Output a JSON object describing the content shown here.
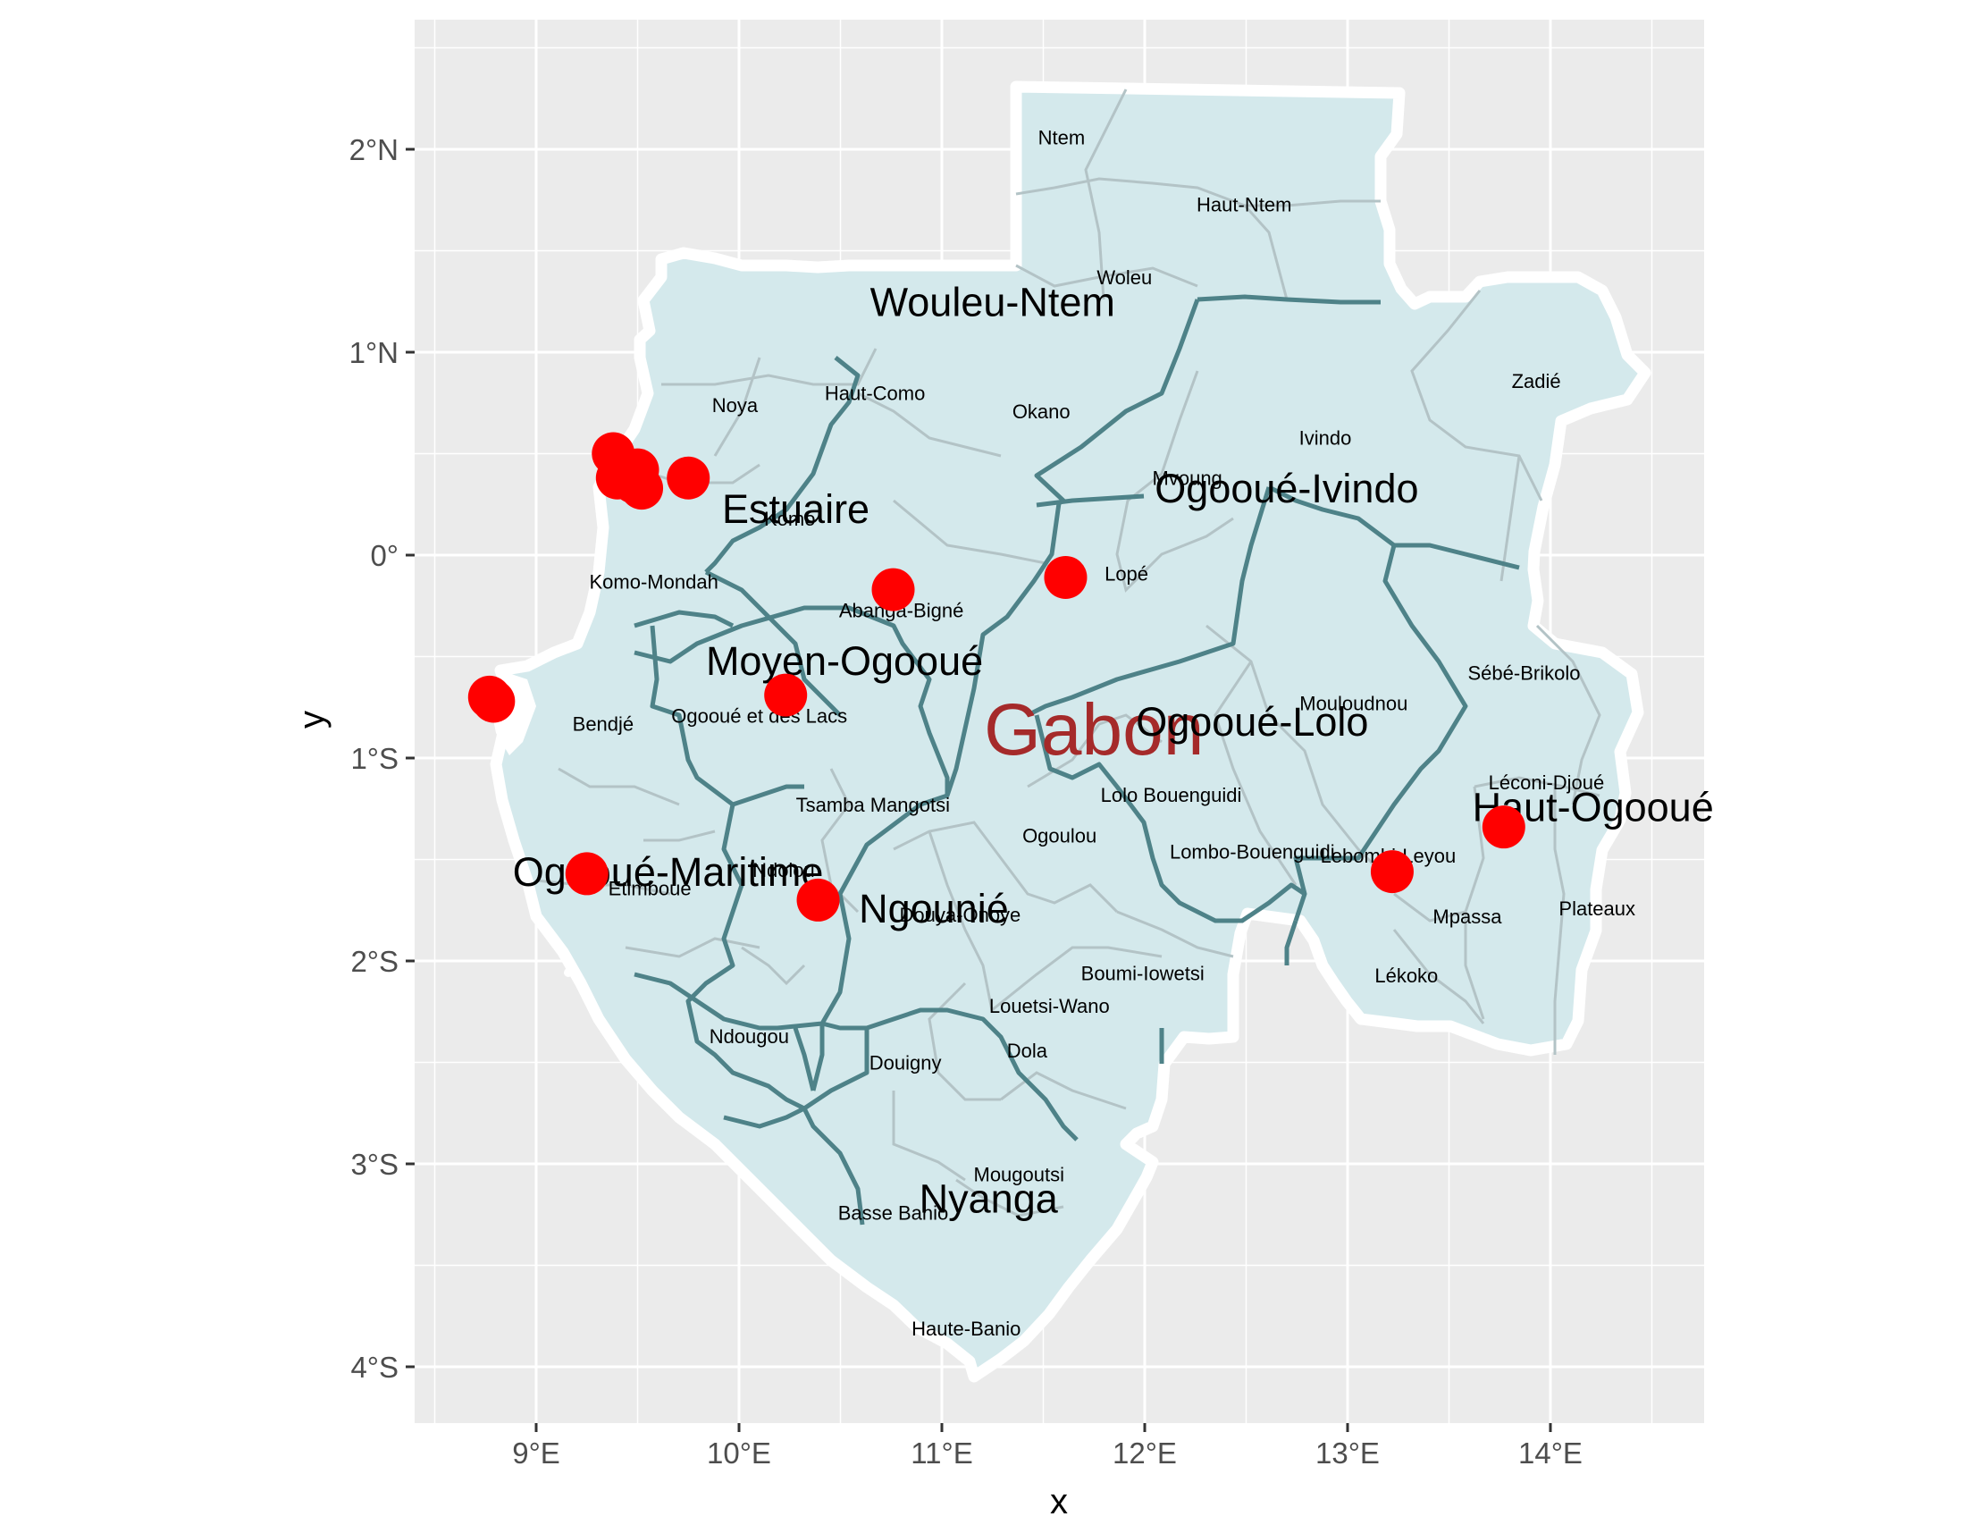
{
  "chart_data": {
    "type": "map",
    "xlabel": "x",
    "ylabel": "y",
    "xlim": [
      8.4,
      14.8
    ],
    "ylim": [
      -4.3,
      2.6
    ],
    "grid": true,
    "x_ticks": [
      {
        "value": 9,
        "label": "9°E"
      },
      {
        "value": 10,
        "label": "10°E"
      },
      {
        "value": 11,
        "label": "11°E"
      },
      {
        "value": 12,
        "label": "12°E"
      },
      {
        "value": 13,
        "label": "13°E"
      },
      {
        "value": 14,
        "label": "14°E"
      }
    ],
    "y_ticks": [
      {
        "value": 2,
        "label": "2°N"
      },
      {
        "value": 1,
        "label": "1°N"
      },
      {
        "value": 0,
        "label": "0°"
      },
      {
        "value": -1,
        "label": "1°S"
      },
      {
        "value": -2,
        "label": "2°S"
      },
      {
        "value": -3,
        "label": "3°S"
      },
      {
        "value": -4,
        "label": "4°S"
      }
    ],
    "country": {
      "name": "Gabon",
      "lon": 11.75,
      "lat": -0.85,
      "color": "#a52a2a"
    },
    "provinces": [
      {
        "name": "Wouleu-Ntem",
        "lon": 11.25,
        "lat": 1.25
      },
      {
        "name": "Estuaire",
        "lon": 10.28,
        "lat": 0.23
      },
      {
        "name": "Ogooué-Ivindo",
        "lon": 12.7,
        "lat": 0.33
      },
      {
        "name": "Moyen-Ogooué",
        "lon": 10.52,
        "lat": -0.52
      },
      {
        "name": "Ogooué-Lolo",
        "lon": 12.53,
        "lat": -0.82
      },
      {
        "name": "Haut-Ogooué",
        "lon": 14.21,
        "lat": -1.24
      },
      {
        "name": "Ogooué-Maritime",
        "lon": 9.65,
        "lat": -1.56
      },
      {
        "name": "Ngounié",
        "lon": 10.96,
        "lat": -1.74
      },
      {
        "name": "Nyanga",
        "lon": 11.23,
        "lat": -3.17
      }
    ],
    "departments": [
      {
        "name": "Ntem",
        "lon": 11.59,
        "lat": 2.06
      },
      {
        "name": "Haut-Ntem",
        "lon": 12.49,
        "lat": 1.73
      },
      {
        "name": "Woleu",
        "lon": 11.9,
        "lat": 1.37
      },
      {
        "name": "Okano",
        "lon": 11.49,
        "lat": 0.71
      },
      {
        "name": "Haut-Como",
        "lon": 10.67,
        "lat": 0.8
      },
      {
        "name": "Noya",
        "lon": 9.98,
        "lat": 0.74
      },
      {
        "name": "Zadié",
        "lon": 13.93,
        "lat": 0.86
      },
      {
        "name": "Ivindo",
        "lon": 12.89,
        "lat": 0.58
      },
      {
        "name": "Mvoung",
        "lon": 12.21,
        "lat": 0.38
      },
      {
        "name": "Komo",
        "lon": 10.25,
        "lat": 0.18
      },
      {
        "name": "Komo-Mondah",
        "lon": 9.58,
        "lat": -0.13
      },
      {
        "name": "Lopé",
        "lon": 11.91,
        "lat": -0.09
      },
      {
        "name": "Abanga-Bigné",
        "lon": 10.8,
        "lat": -0.27
      },
      {
        "name": "Sébé-Brikolo",
        "lon": 13.87,
        "lat": -0.58
      },
      {
        "name": "Mouloudnou",
        "lon": 13.03,
        "lat": -0.73
      },
      {
        "name": "Bendjé",
        "lon": 9.33,
        "lat": -0.83
      },
      {
        "name": "Ogooué et des Lacs",
        "lon": 10.1,
        "lat": -0.79
      },
      {
        "name": "Léconi-Djoué",
        "lon": 13.98,
        "lat": -1.12
      },
      {
        "name": "Lolo Bouenguidi",
        "lon": 12.13,
        "lat": -1.18
      },
      {
        "name": "Tsamba Mangotsi",
        "lon": 10.66,
        "lat": -1.23
      },
      {
        "name": "Ogoulou",
        "lon": 11.58,
        "lat": -1.38
      },
      {
        "name": "Lombo-Bouenguidi",
        "lon": 12.53,
        "lat": -1.46
      },
      {
        "name": "Lebombi-Leyou",
        "lon": 13.2,
        "lat": -1.48
      },
      {
        "name": "Ndolou",
        "lon": 10.22,
        "lat": -1.55
      },
      {
        "name": "Etimboué",
        "lon": 9.56,
        "lat": -1.64
      },
      {
        "name": "Mpassa",
        "lon": 13.59,
        "lat": -1.78
      },
      {
        "name": "Plateaux",
        "lon": 14.23,
        "lat": -1.74
      },
      {
        "name": "Douya-Onoye",
        "lon": 11.09,
        "lat": -1.77
      },
      {
        "name": "Boumi-Iowetsi",
        "lon": 11.99,
        "lat": -2.06
      },
      {
        "name": "Lékoko",
        "lon": 13.29,
        "lat": -2.07
      },
      {
        "name": "Louetsi-Wano",
        "lon": 11.53,
        "lat": -2.22
      },
      {
        "name": "Ndougou",
        "lon": 10.05,
        "lat": -2.37
      },
      {
        "name": "Dola",
        "lon": 11.42,
        "lat": -2.44
      },
      {
        "name": "Douigny",
        "lon": 10.82,
        "lat": -2.5
      },
      {
        "name": "Mougoutsi",
        "lon": 11.38,
        "lat": -3.05
      },
      {
        "name": "Basse Banio",
        "lon": 10.76,
        "lat": -3.24
      },
      {
        "name": "Haute-Banio",
        "lon": 11.12,
        "lat": -3.81
      }
    ],
    "points": [
      {
        "lon": 9.38,
        "lat": 0.5
      },
      {
        "lon": 9.42,
        "lat": 0.44
      },
      {
        "lon": 9.45,
        "lat": 0.4
      },
      {
        "lon": 9.48,
        "lat": 0.36
      },
      {
        "lon": 9.5,
        "lat": 0.42
      },
      {
        "lon": 9.52,
        "lat": 0.33
      },
      {
        "lon": 9.4,
        "lat": 0.38
      },
      {
        "lon": 9.75,
        "lat": 0.38
      },
      {
        "lon": 8.77,
        "lat": -0.7
      },
      {
        "lon": 8.79,
        "lat": -0.72
      },
      {
        "lon": 10.76,
        "lat": -0.17
      },
      {
        "lon": 11.61,
        "lat": -0.11
      },
      {
        "lon": 10.23,
        "lat": -0.69
      },
      {
        "lon": 9.25,
        "lat": -1.57
      },
      {
        "lon": 10.39,
        "lat": -1.7
      },
      {
        "lon": 13.22,
        "lat": -1.56
      },
      {
        "lon": 13.77,
        "lat": -1.34
      }
    ],
    "colors": {
      "panel": "#ebebeb",
      "grid": "#ffffff",
      "land": "#d4e9ec",
      "province_border": "#4e8288",
      "dept_border": "#b3c3c6",
      "coast": "#ffffff",
      "point": "#ff0000"
    }
  }
}
